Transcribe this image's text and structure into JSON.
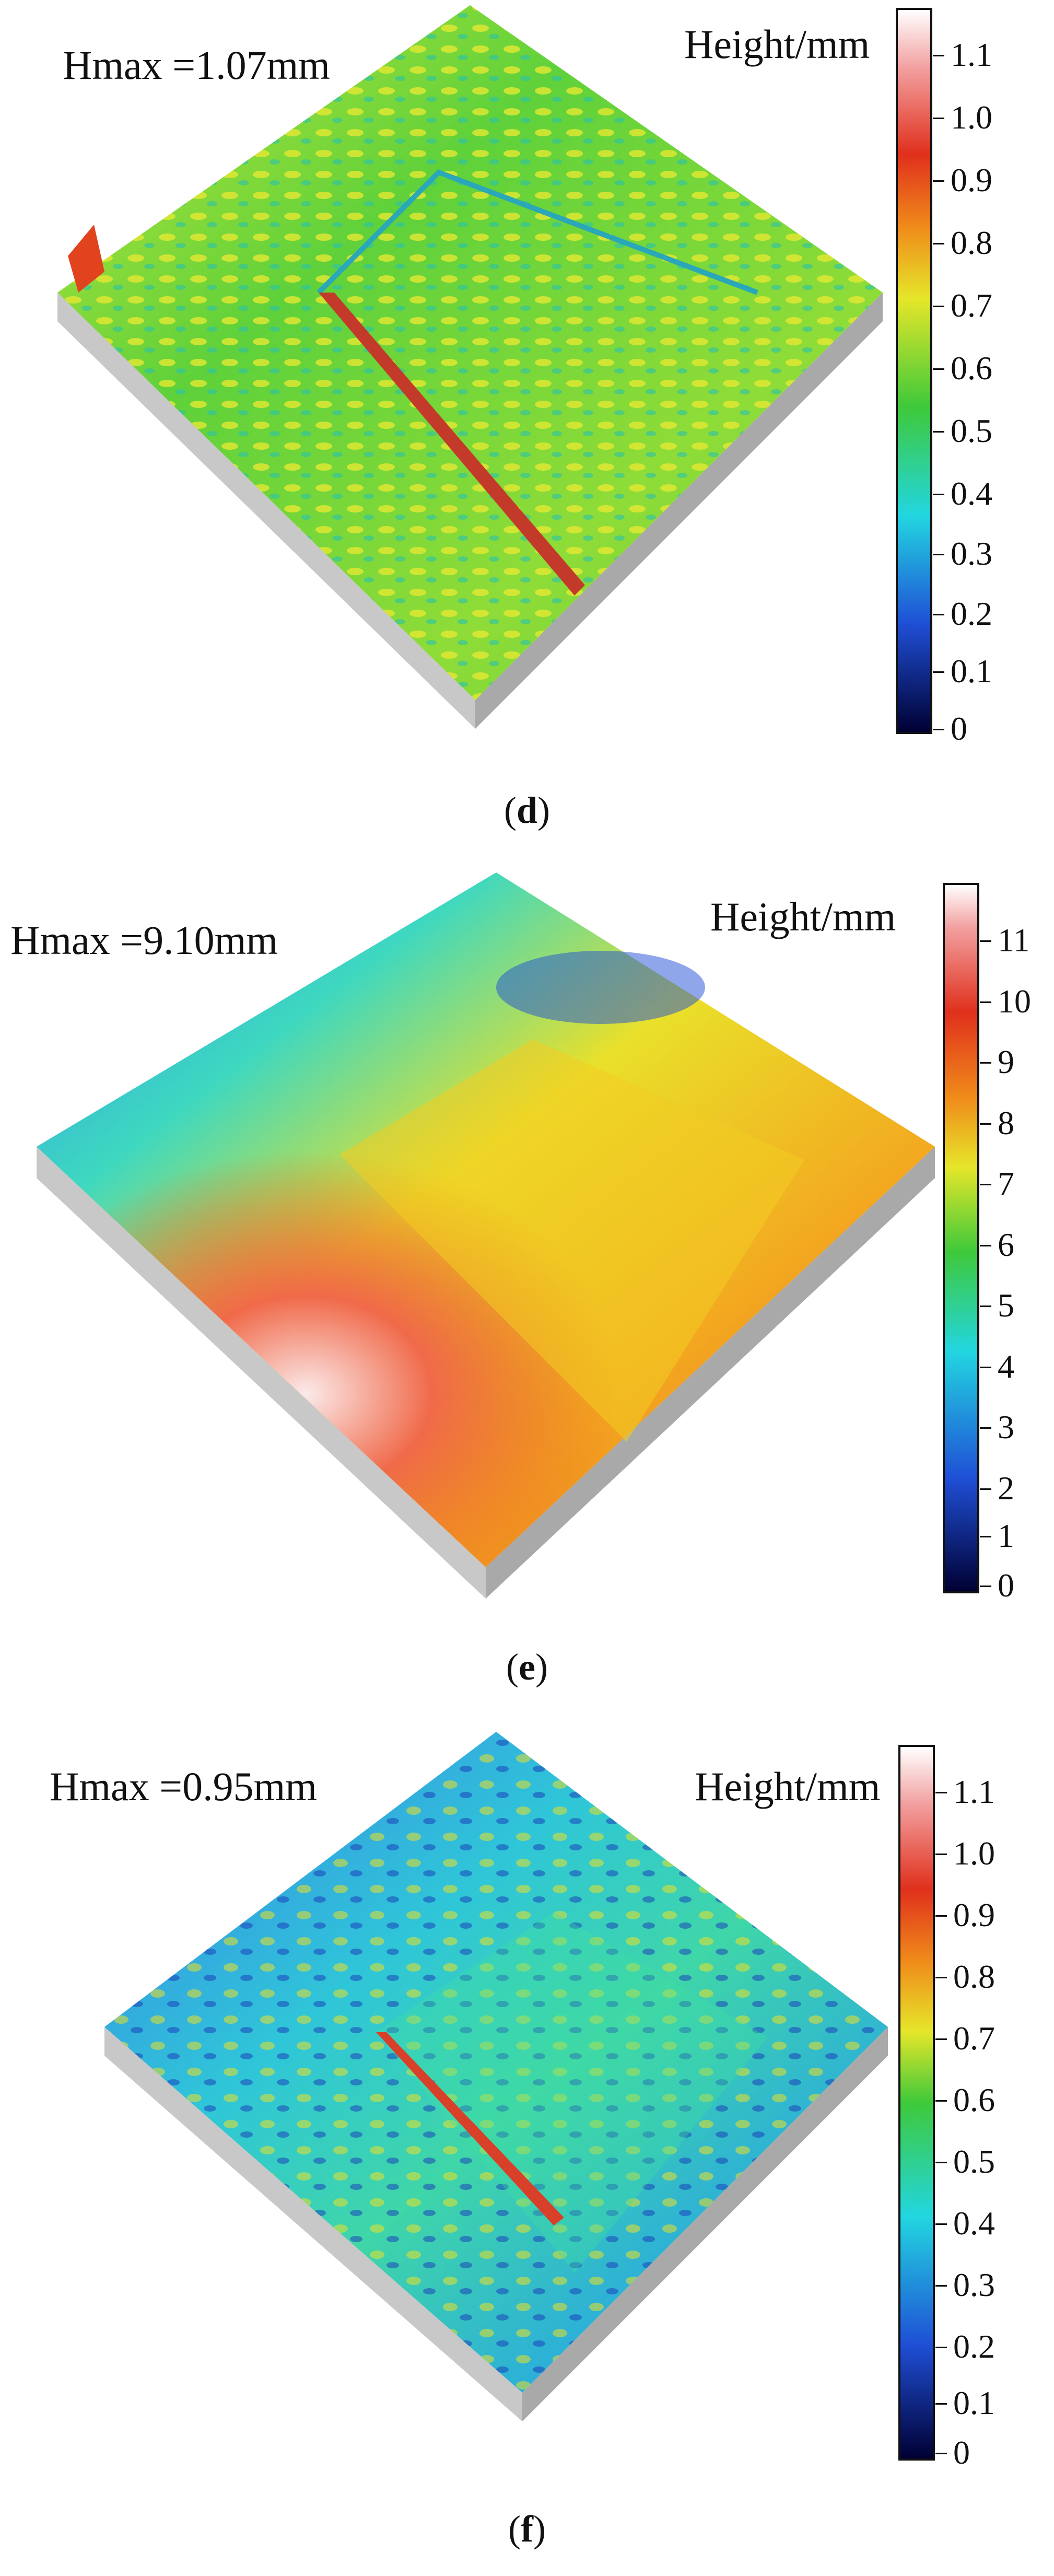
{
  "panels": [
    {
      "id": "d",
      "hmax": "Hmax =1.07mm",
      "colorbar_label": "Height/mm",
      "ticks": [
        "1.1",
        "1.0",
        "0.9",
        "0.8",
        "0.7",
        "0.6",
        "0.5",
        "0.4",
        "0.3",
        "0.2",
        "0.1",
        "0"
      ],
      "caption_label": "d"
    },
    {
      "id": "e",
      "hmax": "Hmax =9.10mm",
      "colorbar_label": "Height/mm",
      "ticks": [
        "11",
        "10",
        "9",
        "8",
        "7",
        "6",
        "5",
        "4",
        "3",
        "2",
        "1",
        "0"
      ],
      "caption_label": "e"
    },
    {
      "id": "f",
      "hmax": "Hmax =0.95mm",
      "colorbar_label": "Height/mm",
      "ticks": [
        "1.1",
        "1.0",
        "0.9",
        "0.8",
        "0.7",
        "0.6",
        "0.5",
        "0.4",
        "0.3",
        "0.2",
        "0.1",
        "0"
      ],
      "caption_label": "f"
    }
  ],
  "colors": {
    "low": "#000033",
    "blue": "#1f4fd6",
    "cyan": "#22d6e0",
    "green": "#3ec93a",
    "yellow": "#e6e62a",
    "orange": "#f08a1a",
    "red": "#e0301c",
    "high": "#ffffff",
    "base_side": "#b8b8b8"
  }
}
